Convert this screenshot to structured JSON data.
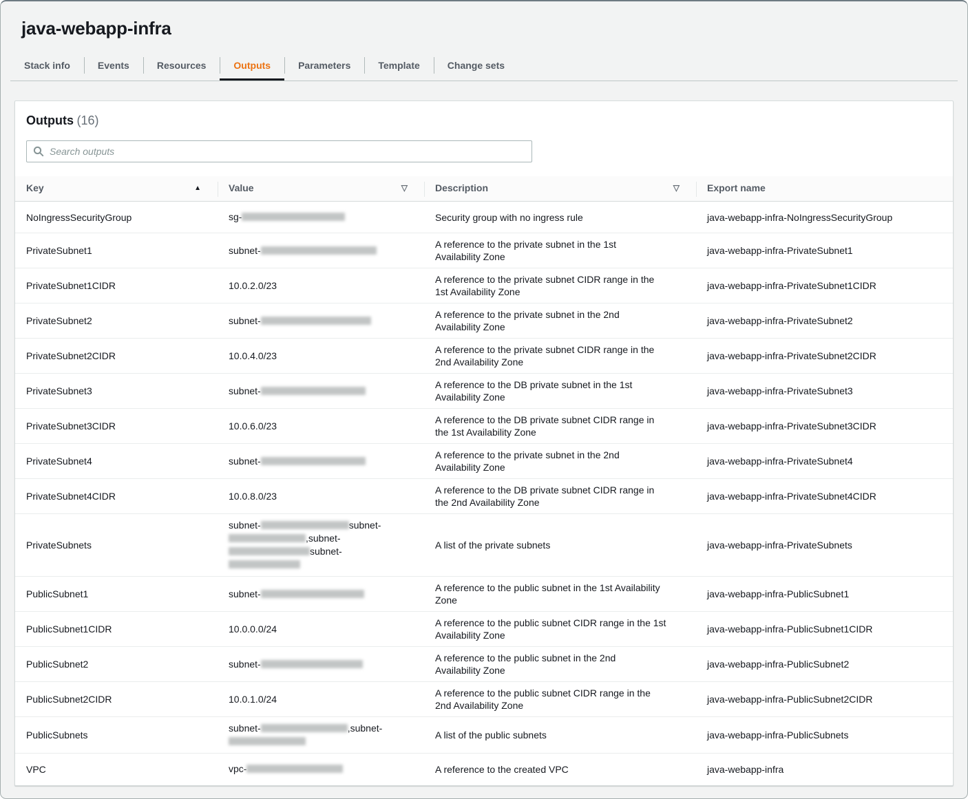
{
  "window": {
    "title": "java-webapp-infra"
  },
  "tabs": [
    {
      "label": "Stack info",
      "active": false
    },
    {
      "label": "Events",
      "active": false
    },
    {
      "label": "Resources",
      "active": false
    },
    {
      "label": "Outputs",
      "active": true
    },
    {
      "label": "Parameters",
      "active": false
    },
    {
      "label": "Template",
      "active": false
    },
    {
      "label": "Change sets",
      "active": false
    }
  ],
  "outputs_panel": {
    "title": "Outputs",
    "count": "(16)",
    "search": {
      "placeholder": "Search outputs",
      "value": ""
    },
    "columns": [
      {
        "label": "Key",
        "sort_icon": "▲"
      },
      {
        "label": "Value",
        "sort_icon": "▽"
      },
      {
        "label": "Description",
        "sort_icon": "▽"
      },
      {
        "label": "Export name",
        "sort_icon": ""
      }
    ],
    "rows": [
      {
        "key": "NoIngressSecurityGroup",
        "value_lines": [
          [
            {
              "text": "sg-"
            },
            {
              "redact": 150
            }
          ]
        ],
        "description": "Security group with no ingress rule",
        "export_name": "java-webapp-infra-NoIngressSecurityGroup"
      },
      {
        "key": "PrivateSubnet1",
        "value_lines": [
          [
            {
              "text": "subnet-"
            },
            {
              "redact": 168
            }
          ]
        ],
        "description": "A reference to the private subnet in the 1st\nAvailability Zone",
        "export_name": "java-webapp-infra-PrivateSubnet1"
      },
      {
        "key": "PrivateSubnet1CIDR",
        "value_lines": [
          [
            {
              "text": "10.0.2.0/23"
            }
          ]
        ],
        "description": "A reference to the private subnet CIDR range in the\n1st Availability Zone",
        "export_name": "java-webapp-infra-PrivateSubnet1CIDR"
      },
      {
        "key": "PrivateSubnet2",
        "value_lines": [
          [
            {
              "text": "subnet-"
            },
            {
              "redact": 160
            }
          ]
        ],
        "description": "A reference to the private subnet in the 2nd\nAvailability Zone",
        "export_name": "java-webapp-infra-PrivateSubnet2"
      },
      {
        "key": "PrivateSubnet2CIDR",
        "value_lines": [
          [
            {
              "text": "10.0.4.0/23"
            }
          ]
        ],
        "description": "A reference to the private subnet CIDR range in the\n2nd Availability Zone",
        "export_name": "java-webapp-infra-PrivateSubnet2CIDR"
      },
      {
        "key": "PrivateSubnet3",
        "value_lines": [
          [
            {
              "text": "subnet-"
            },
            {
              "redact": 152
            }
          ]
        ],
        "description": "A reference to the DB private subnet in the 1st\nAvailability Zone",
        "export_name": "java-webapp-infra-PrivateSubnet3"
      },
      {
        "key": "PrivateSubnet3CIDR",
        "value_lines": [
          [
            {
              "text": "10.0.6.0/23"
            }
          ]
        ],
        "description": "A reference to the DB private subnet CIDR range in\nthe 1st Availability Zone",
        "export_name": "java-webapp-infra-PrivateSubnet3CIDR"
      },
      {
        "key": "PrivateSubnet4",
        "value_lines": [
          [
            {
              "text": "subnet-"
            },
            {
              "redact": 152
            }
          ]
        ],
        "description": "A reference to the private subnet in the 2nd\nAvailability Zone",
        "export_name": "java-webapp-infra-PrivateSubnet4"
      },
      {
        "key": "PrivateSubnet4CIDR",
        "value_lines": [
          [
            {
              "text": "10.0.8.0/23"
            }
          ]
        ],
        "description": "A reference to the DB private subnet CIDR range in\nthe 2nd Availability Zone",
        "export_name": "java-webapp-infra-PrivateSubnet4CIDR"
      },
      {
        "key": "PrivateSubnets",
        "value_lines": [
          [
            {
              "text": "subnet-"
            },
            {
              "redact": 128
            },
            {
              "text": "subnet-"
            }
          ],
          [
            {
              "redact": 112
            },
            {
              "text": ",subnet-"
            }
          ],
          [
            {
              "redact": 118
            },
            {
              "text": "subnet-"
            }
          ],
          [
            {
              "redact": 104
            }
          ]
        ],
        "description": "A list of the private subnets",
        "export_name": "java-webapp-infra-PrivateSubnets"
      },
      {
        "key": "PublicSubnet1",
        "value_lines": [
          [
            {
              "text": "subnet-"
            },
            {
              "redact": 150
            }
          ]
        ],
        "description": "A reference to the public subnet in the 1st Availability\nZone",
        "export_name": "java-webapp-infra-PublicSubnet1"
      },
      {
        "key": "PublicSubnet1CIDR",
        "value_lines": [
          [
            {
              "text": "10.0.0.0/24"
            }
          ]
        ],
        "description": "A reference to the public subnet CIDR range in the 1st\nAvailability Zone",
        "export_name": "java-webapp-infra-PublicSubnet1CIDR"
      },
      {
        "key": "PublicSubnet2",
        "value_lines": [
          [
            {
              "text": "subnet-"
            },
            {
              "redact": 148
            }
          ]
        ],
        "description": "A reference to the public subnet in the 2nd\nAvailability Zone",
        "export_name": "java-webapp-infra-PublicSubnet2"
      },
      {
        "key": "PublicSubnet2CIDR",
        "value_lines": [
          [
            {
              "text": "10.0.1.0/24"
            }
          ]
        ],
        "description": "A reference to the public subnet CIDR range in the\n2nd Availability Zone",
        "export_name": "java-webapp-infra-PublicSubnet2CIDR"
      },
      {
        "key": "PublicSubnets",
        "value_lines": [
          [
            {
              "text": "subnet-"
            },
            {
              "redact": 126
            },
            {
              "text": ",subnet-"
            }
          ],
          [
            {
              "redact": 112
            }
          ]
        ],
        "description": "A list of the public subnets",
        "export_name": "java-webapp-infra-PublicSubnets"
      },
      {
        "key": "VPC",
        "value_lines": [
          [
            {
              "text": "vpc-"
            },
            {
              "redact": 140
            }
          ]
        ],
        "description": "A reference to the created VPC",
        "export_name": "java-webapp-infra"
      }
    ]
  },
  "theme": {
    "accent_orange": "#ec7211",
    "active_tab_underline": "#16191f",
    "page_background": "#f2f3f3",
    "panel_border": "#d5dbdb",
    "row_divider": "#eaeded",
    "text_primary": "#16191f",
    "text_secondary": "#545b64",
    "placeholder_text": "#879596"
  }
}
